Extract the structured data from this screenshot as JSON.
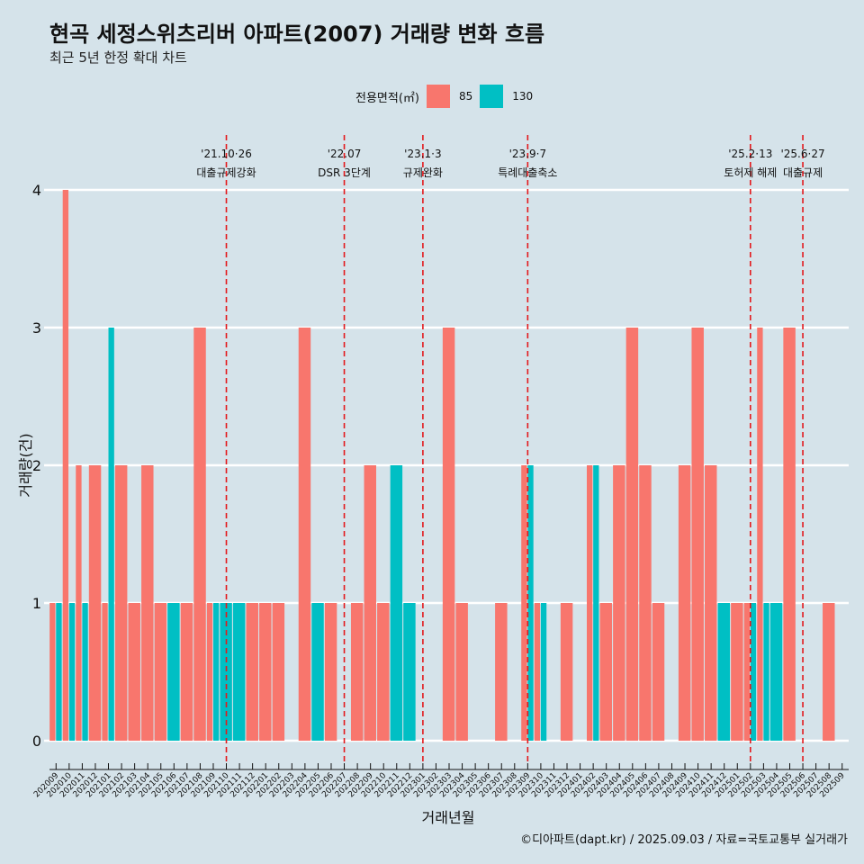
{
  "header": {
    "title": "현곡 세정스위츠리버 아파트(2007) 거래량 변화 흐름",
    "subtitle": "최근 5년 한정 확대 차트"
  },
  "legend": {
    "title": "전용면적(㎡)",
    "items": [
      {
        "label": "85",
        "color": "#f8766d"
      },
      {
        "label": "130",
        "color": "#00bfc4"
      }
    ]
  },
  "footer": "©디아파트(dapt.kr) / 2025.09.03 / 자료=국토교통부 실거래가",
  "chart_data": {
    "type": "bar",
    "position": "dodge",
    "xlabel": "거래년월",
    "ylabel": "거래량(건)",
    "ylim": [
      0,
      4
    ],
    "yticks": [
      0,
      1,
      2,
      3,
      4
    ],
    "grid": "horizontal",
    "legend_placement": "top",
    "categories": [
      "202009",
      "202010",
      "202011",
      "202012",
      "202101",
      "202102",
      "202103",
      "202104",
      "202105",
      "202106",
      "202107",
      "202108",
      "202109",
      "202110",
      "202111",
      "202112",
      "202201",
      "202202",
      "202203",
      "202204",
      "202205",
      "202206",
      "202207",
      "202208",
      "202209",
      "202210",
      "202211",
      "202212",
      "202301",
      "202302",
      "202303",
      "202304",
      "202305",
      "202306",
      "202307",
      "202308",
      "202309",
      "202310",
      "202311",
      "202312",
      "202401",
      "202402",
      "202403",
      "202404",
      "202405",
      "202406",
      "202407",
      "202408",
      "202409",
      "202410",
      "202411",
      "202412",
      "202501",
      "202502",
      "202503",
      "202504",
      "202505",
      "202506",
      "202507",
      "202508",
      "202509"
    ],
    "series": [
      {
        "name": "85",
        "color": "#f8766d",
        "values": [
          1,
          4,
          2,
          2,
          1,
          2,
          1,
          2,
          1,
          null,
          1,
          3,
          1,
          null,
          null,
          1,
          1,
          1,
          null,
          3,
          null,
          1,
          null,
          1,
          2,
          1,
          null,
          null,
          null,
          null,
          3,
          1,
          null,
          null,
          1,
          null,
          2,
          1,
          null,
          1,
          null,
          2,
          1,
          2,
          3,
          2,
          1,
          null,
          2,
          3,
          2,
          null,
          1,
          1,
          3,
          null,
          3,
          null,
          null,
          1,
          null
        ]
      },
      {
        "name": "130",
        "color": "#00bfc4",
        "values": [
          1,
          1,
          1,
          null,
          3,
          null,
          null,
          null,
          null,
          1,
          null,
          null,
          1,
          1,
          1,
          null,
          null,
          null,
          null,
          null,
          1,
          null,
          null,
          null,
          null,
          null,
          2,
          1,
          null,
          null,
          null,
          null,
          null,
          null,
          null,
          null,
          2,
          1,
          null,
          null,
          null,
          2,
          null,
          null,
          null,
          null,
          null,
          null,
          null,
          null,
          null,
          1,
          null,
          1,
          1,
          1,
          null,
          null,
          null,
          null,
          null
        ]
      }
    ],
    "annotations": [
      {
        "date": "'21.10·26",
        "label": "대출규제강화",
        "x": "202110"
      },
      {
        "date": "'22.07",
        "label": "DSR 3단계",
        "x": "202207"
      },
      {
        "date": "'23.1·3",
        "label": "규제완화",
        "x": "202301"
      },
      {
        "date": "'23.9·7",
        "label": "특례대출축소",
        "x": "202309"
      },
      {
        "date": "'25.2·13",
        "label": "토허제 해제",
        "x": "202502"
      },
      {
        "date": "'25.6·27",
        "label": "대출규제",
        "x": "202506"
      }
    ]
  }
}
